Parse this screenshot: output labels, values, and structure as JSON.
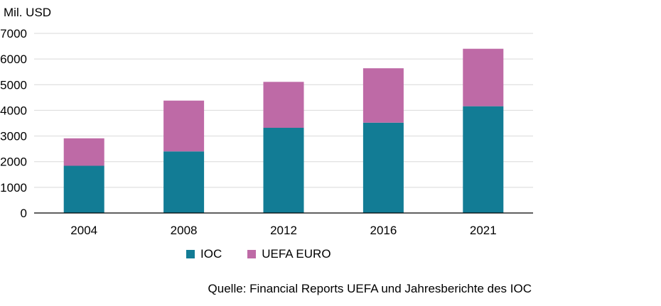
{
  "colors": {
    "ioc": "#127c95",
    "uefa": "#be6aa6",
    "grid": "#d9d9d9",
    "axis": "#000000"
  },
  "chart_data": {
    "type": "bar",
    "stacked": true,
    "ylabel": "Mil. USD",
    "xlabel": "",
    "categories": [
      "2004",
      "2008",
      "2012",
      "2016",
      "2021"
    ],
    "series": [
      {
        "name": "IOC",
        "values": [
          1840,
          2400,
          3320,
          3520,
          4160
        ]
      },
      {
        "name": "UEFA EURO",
        "values": [
          1070,
          1980,
          1790,
          2120,
          2240
        ]
      }
    ],
    "ylim": [
      0,
      7000
    ],
    "yticks": [
      0,
      1000,
      2000,
      3000,
      4000,
      5000,
      6000,
      7000
    ],
    "grid": true,
    "legend_position": "bottom"
  },
  "source_text": "Quelle: Financial Reports UEFA und Jahresberichte des IOC"
}
